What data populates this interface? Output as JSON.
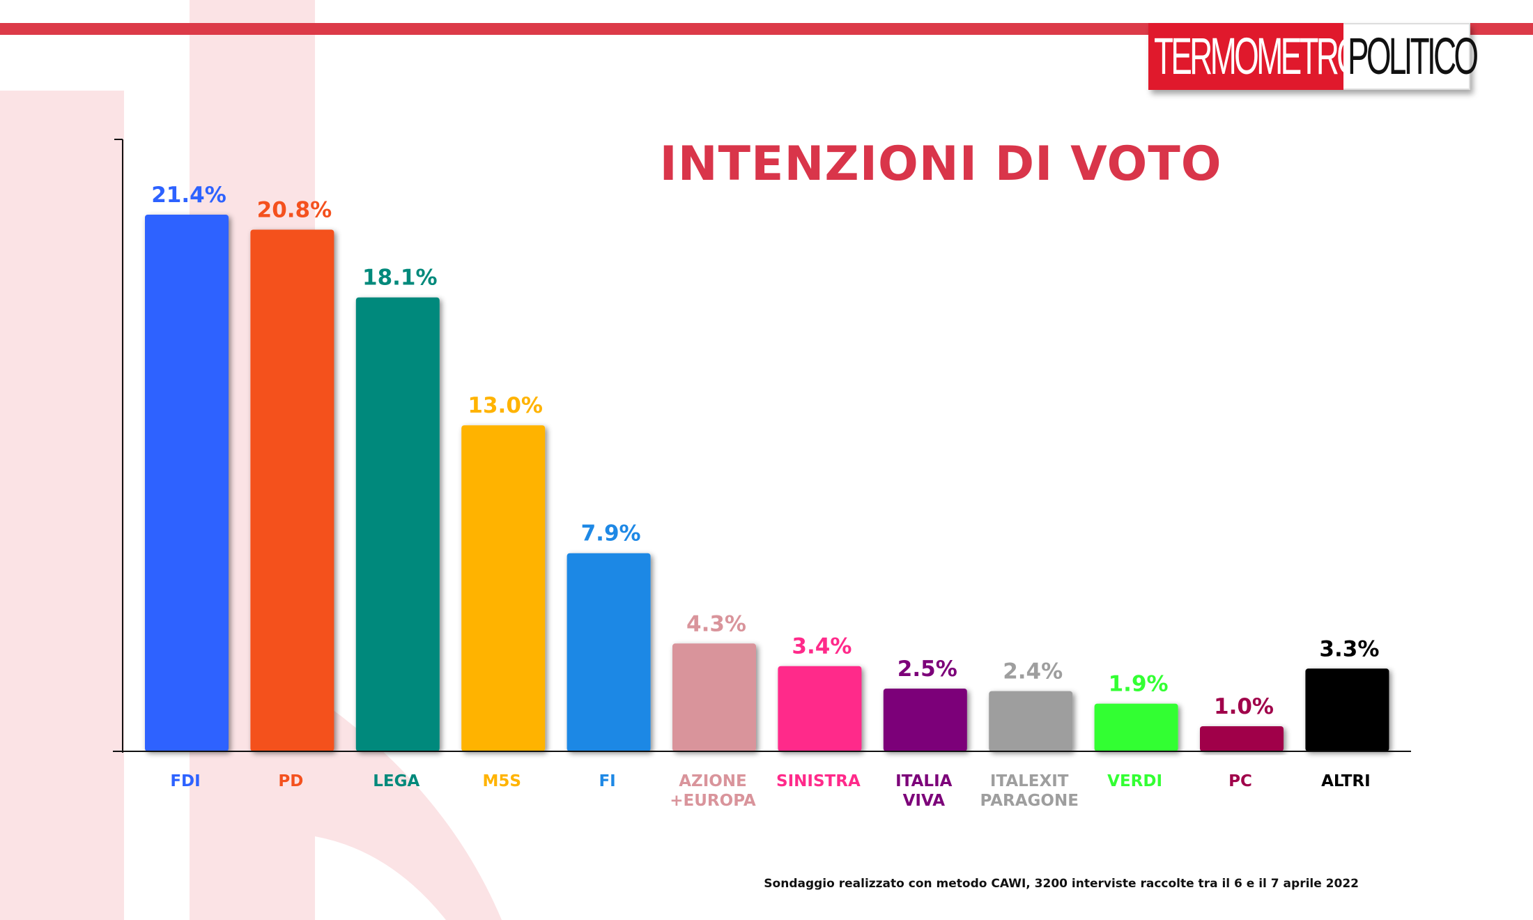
{
  "logo": {
    "part1": "TERMOMETRO",
    "part2": "POLITICO"
  },
  "footnote": "Sondaggio realizzato con metodo CAWI, 3200 interviste raccolte tra il 6 e il 7 aprile 2022",
  "colors": {
    "stripe": "#dc3a48",
    "title": "#d9354a",
    "logo_red": "#e0192c"
  },
  "chart_data": {
    "type": "bar",
    "title": "INTENZIONI DI VOTO",
    "xlabel": "",
    "ylabel": "",
    "ylim": [
      0,
      24.4
    ],
    "grid": false,
    "value_format": "percent",
    "categories": [
      [
        "FDI"
      ],
      [
        "PD"
      ],
      [
        "LEGA"
      ],
      [
        "M5S"
      ],
      [
        "FI"
      ],
      [
        "AZIONE",
        "+EUROPA"
      ],
      [
        "SINISTRA"
      ],
      [
        "ITALIA",
        "VIVA"
      ],
      [
        "ITALEXIT",
        "PARAGONE"
      ],
      [
        "VERDI"
      ],
      [
        "PC"
      ],
      [
        "ALTRI"
      ]
    ],
    "values": [
      21.4,
      20.8,
      18.1,
      13.0,
      7.9,
      4.3,
      3.4,
      2.5,
      2.4,
      1.9,
      1.0,
      3.3
    ],
    "value_labels": [
      "21.4%",
      "20.8%",
      "18.1%",
      "13.0%",
      "7.9%",
      "4.3%",
      "3.4%",
      "2.5%",
      "2.4%",
      "1.9%",
      "1.0%",
      "3.3%"
    ],
    "colors": [
      "#2d62ff",
      "#f4511e",
      "#00897b",
      "#ffb300",
      "#1e88e5",
      "#d9949b",
      "#ff2a8a",
      "#7c0079",
      "#9e9e9e",
      "#33ff33",
      "#a0004a",
      "#000000"
    ]
  }
}
